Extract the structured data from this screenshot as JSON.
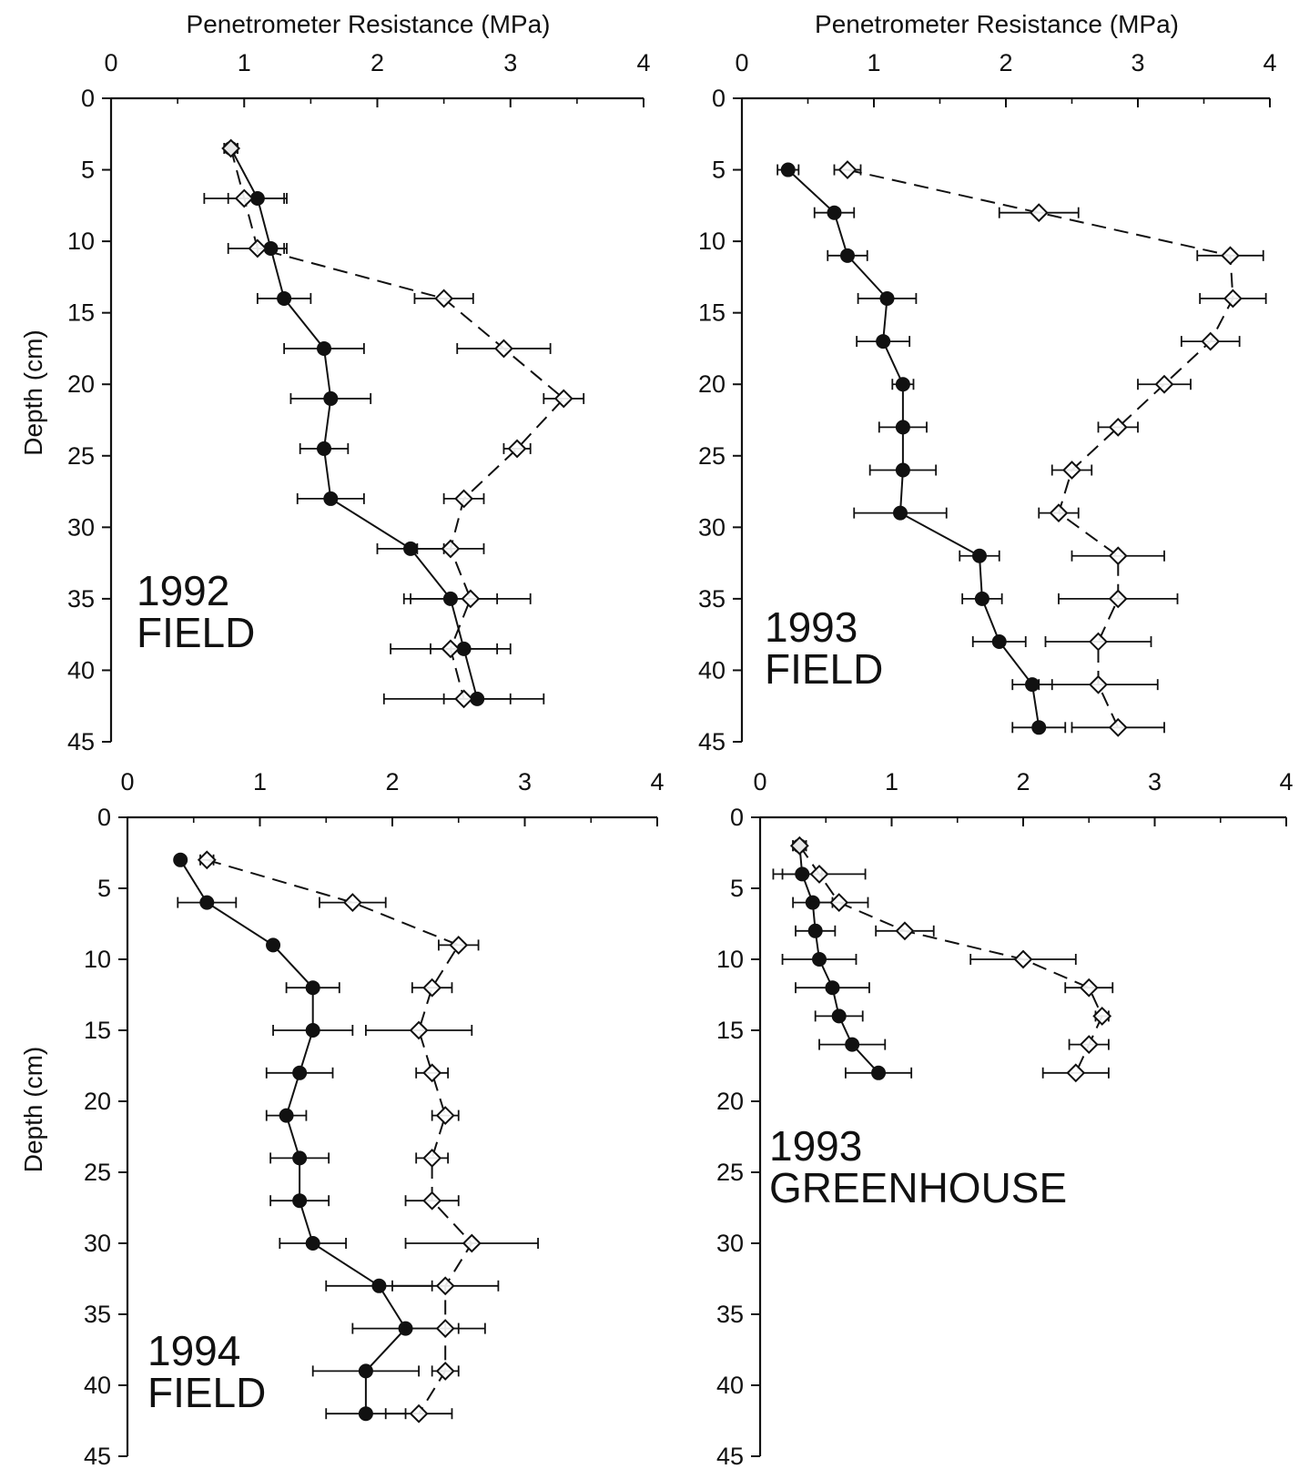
{
  "colors": {
    "ink": "#111111",
    "background": "#ffffff"
  },
  "chart_data": [
    {
      "type": "line",
      "panel_label": [
        "1992",
        "FIELD"
      ],
      "xlabel": "Penetrometer Resistance (MPa)",
      "ylabel": "Depth (cm)",
      "xlim": [
        0,
        4
      ],
      "ylim": [
        0,
        45
      ],
      "y_inverted": true,
      "x_axis_position": "top",
      "xticks": [
        0,
        1,
        2,
        3,
        4
      ],
      "yticks": [
        0,
        5,
        10,
        15,
        20,
        25,
        30,
        35,
        40,
        45
      ],
      "series": [
        {
          "marker": "filled-circle",
          "line": "solid",
          "points": [
            {
              "depth": 3.5,
              "x": 0.9,
              "err": 0.05
            },
            {
              "depth": 7,
              "x": 1.1,
              "err": 0.22
            },
            {
              "depth": 10.5,
              "x": 1.2,
              "err": 0.1
            },
            {
              "depth": 14,
              "x": 1.3,
              "err": 0.2
            },
            {
              "depth": 17.5,
              "x": 1.6,
              "err": 0.3
            },
            {
              "depth": 21,
              "x": 1.65,
              "err": 0.3
            },
            {
              "depth": 24.5,
              "x": 1.6,
              "err": 0.18
            },
            {
              "depth": 28,
              "x": 1.65,
              "err": 0.25
            },
            {
              "depth": 31.5,
              "x": 2.25,
              "err": 0.25
            },
            {
              "depth": 35,
              "x": 2.55,
              "err": 0.35
            },
            {
              "depth": 38.5,
              "x": 2.65,
              "err": 0.25
            },
            {
              "depth": 42,
              "x": 2.75,
              "err": 0.25
            }
          ]
        },
        {
          "marker": "open-diamond",
          "line": "dashed",
          "points": [
            {
              "depth": 3.5,
              "x": 0.9,
              "err": 0.05
            },
            {
              "depth": 7,
              "x": 1.0,
              "err": 0.3
            },
            {
              "depth": 10.5,
              "x": 1.1,
              "err": 0.22
            },
            {
              "depth": 14,
              "x": 2.5,
              "err": 0.22
            },
            {
              "depth": 17.5,
              "x": 2.95,
              "err": 0.35
            },
            {
              "depth": 21,
              "x": 3.4,
              "err": 0.15
            },
            {
              "depth": 24.5,
              "x": 3.05,
              "err": 0.1
            },
            {
              "depth": 28,
              "x": 2.65,
              "err": 0.15
            },
            {
              "depth": 31.5,
              "x": 2.55,
              "err": 0.25
            },
            {
              "depth": 35,
              "x": 2.7,
              "err": 0.45
            },
            {
              "depth": 38.5,
              "x": 2.55,
              "err": 0.45
            },
            {
              "depth": 42,
              "x": 2.65,
              "err": 0.6
            }
          ]
        }
      ]
    },
    {
      "type": "line",
      "panel_label": [
        "1993",
        "FIELD"
      ],
      "xlabel": "Penetrometer Resistance (MPa)",
      "ylabel": "",
      "xlim": [
        0,
        4
      ],
      "ylim": [
        0,
        45
      ],
      "y_inverted": true,
      "x_axis_position": "top",
      "xticks": [
        0,
        1,
        2,
        3,
        4
      ],
      "yticks": [
        0,
        5,
        10,
        15,
        20,
        25,
        30,
        35,
        40,
        45
      ],
      "series": [
        {
          "marker": "filled-circle",
          "line": "solid",
          "points": [
            {
              "depth": 5,
              "x": 0.35,
              "err": 0.08
            },
            {
              "depth": 8,
              "x": 0.7,
              "err": 0.15
            },
            {
              "depth": 11,
              "x": 0.8,
              "err": 0.15
            },
            {
              "depth": 14,
              "x": 1.1,
              "err": 0.22
            },
            {
              "depth": 17,
              "x": 1.07,
              "err": 0.2
            },
            {
              "depth": 20,
              "x": 1.22,
              "err": 0.08
            },
            {
              "depth": 23,
              "x": 1.22,
              "err": 0.18
            },
            {
              "depth": 26,
              "x": 1.22,
              "err": 0.25
            },
            {
              "depth": 29,
              "x": 1.2,
              "err": 0.35
            },
            {
              "depth": 32,
              "x": 1.8,
              "err": 0.15
            },
            {
              "depth": 35,
              "x": 1.82,
              "err": 0.15
            },
            {
              "depth": 38,
              "x": 1.95,
              "err": 0.2
            },
            {
              "depth": 41,
              "x": 2.2,
              "err": 0.15
            },
            {
              "depth": 44,
              "x": 2.25,
              "err": 0.2
            }
          ]
        },
        {
          "marker": "open-diamond",
          "line": "dashed",
          "points": [
            {
              "depth": 5,
              "x": 0.8,
              "err": 0.1
            },
            {
              "depth": 8,
              "x": 2.25,
              "err": 0.3
            },
            {
              "depth": 11,
              "x": 3.7,
              "err": 0.25
            },
            {
              "depth": 14,
              "x": 3.72,
              "err": 0.25
            },
            {
              "depth": 17,
              "x": 3.55,
              "err": 0.22
            },
            {
              "depth": 20,
              "x": 3.2,
              "err": 0.2
            },
            {
              "depth": 23,
              "x": 2.85,
              "err": 0.15
            },
            {
              "depth": 26,
              "x": 2.5,
              "err": 0.15
            },
            {
              "depth": 29,
              "x": 2.4,
              "err": 0.15
            },
            {
              "depth": 32,
              "x": 2.85,
              "err": 0.35
            },
            {
              "depth": 35,
              "x": 2.85,
              "err": 0.45
            },
            {
              "depth": 38,
              "x": 2.7,
              "err": 0.4
            },
            {
              "depth": 41,
              "x": 2.7,
              "err": 0.45
            },
            {
              "depth": 44,
              "x": 2.85,
              "err": 0.35
            }
          ]
        }
      ]
    },
    {
      "type": "line",
      "panel_label": [
        "1994",
        "FIELD"
      ],
      "xlabel": "",
      "ylabel": "Depth (cm)",
      "xlim": [
        0,
        4
      ],
      "ylim": [
        0,
        45
      ],
      "y_inverted": true,
      "x_axis_position": "top",
      "xticks": [
        0,
        1,
        2,
        3,
        4
      ],
      "yticks": [
        0,
        5,
        10,
        15,
        20,
        25,
        30,
        35,
        40,
        45
      ],
      "series": [
        {
          "marker": "filled-circle",
          "line": "solid",
          "points": [
            {
              "depth": 3,
              "x": 0.4,
              "err": 0.0
            },
            {
              "depth": 6,
              "x": 0.6,
              "err": 0.22
            },
            {
              "depth": 9,
              "x": 1.1,
              "err": 0.0
            },
            {
              "depth": 12,
              "x": 1.4,
              "err": 0.2
            },
            {
              "depth": 15,
              "x": 1.4,
              "err": 0.3
            },
            {
              "depth": 18,
              "x": 1.3,
              "err": 0.25
            },
            {
              "depth": 21,
              "x": 1.2,
              "err": 0.15
            },
            {
              "depth": 24,
              "x": 1.3,
              "err": 0.22
            },
            {
              "depth": 27,
              "x": 1.3,
              "err": 0.22
            },
            {
              "depth": 30,
              "x": 1.4,
              "err": 0.25
            },
            {
              "depth": 33,
              "x": 1.9,
              "err": 0.4
            },
            {
              "depth": 36,
              "x": 2.1,
              "err": 0.4
            },
            {
              "depth": 39,
              "x": 1.8,
              "err": 0.4
            },
            {
              "depth": 42,
              "x": 1.8,
              "err": 0.3
            }
          ]
        },
        {
          "marker": "open-diamond",
          "line": "dashed",
          "points": [
            {
              "depth": 3,
              "x": 0.6,
              "err": 0.05
            },
            {
              "depth": 6,
              "x": 1.7,
              "err": 0.25
            },
            {
              "depth": 9,
              "x": 2.5,
              "err": 0.15
            },
            {
              "depth": 12,
              "x": 2.3,
              "err": 0.15
            },
            {
              "depth": 15,
              "x": 2.2,
              "err": 0.4
            },
            {
              "depth": 18,
              "x": 2.3,
              "err": 0.12
            },
            {
              "depth": 21,
              "x": 2.4,
              "err": 0.1
            },
            {
              "depth": 24,
              "x": 2.3,
              "err": 0.12
            },
            {
              "depth": 27,
              "x": 2.3,
              "err": 0.2
            },
            {
              "depth": 30,
              "x": 2.6,
              "err": 0.5
            },
            {
              "depth": 33,
              "x": 2.4,
              "err": 0.4
            },
            {
              "depth": 36,
              "x": 2.4,
              "err": 0.3
            },
            {
              "depth": 39,
              "x": 2.4,
              "err": 0.1
            },
            {
              "depth": 42,
              "x": 2.2,
              "err": 0.25
            }
          ]
        }
      ]
    },
    {
      "type": "line",
      "panel_label": [
        "1993",
        "GREENHOUSE"
      ],
      "xlabel": "",
      "ylabel": "",
      "xlim": [
        0,
        4
      ],
      "ylim": [
        0,
        45
      ],
      "y_inverted": true,
      "x_axis_position": "top",
      "xticks": [
        0,
        1,
        2,
        3,
        4
      ],
      "yticks": [
        0,
        5,
        10,
        15,
        20,
        25,
        30,
        35,
        40,
        45
      ],
      "series": [
        {
          "marker": "filled-circle",
          "line": "solid",
          "points": [
            {
              "depth": 2,
              "x": 0.3,
              "err": 0.05
            },
            {
              "depth": 4,
              "x": 0.32,
              "err": 0.15
            },
            {
              "depth": 6,
              "x": 0.4,
              "err": 0.15
            },
            {
              "depth": 8,
              "x": 0.42,
              "err": 0.15
            },
            {
              "depth": 10,
              "x": 0.45,
              "err": 0.28
            },
            {
              "depth": 12,
              "x": 0.55,
              "err": 0.28
            },
            {
              "depth": 14,
              "x": 0.6,
              "err": 0.18
            },
            {
              "depth": 16,
              "x": 0.7,
              "err": 0.25
            },
            {
              "depth": 18,
              "x": 0.9,
              "err": 0.25
            }
          ]
        },
        {
          "marker": "open-diamond",
          "line": "dashed",
          "points": [
            {
              "depth": 2,
              "x": 0.3,
              "err": 0.05
            },
            {
              "depth": 4,
              "x": 0.45,
              "err": 0.35
            },
            {
              "depth": 6,
              "x": 0.6,
              "err": 0.22
            },
            {
              "depth": 8,
              "x": 1.1,
              "err": 0.22
            },
            {
              "depth": 10,
              "x": 2.0,
              "err": 0.4
            },
            {
              "depth": 12,
              "x": 2.5,
              "err": 0.18
            },
            {
              "depth": 14,
              "x": 2.6,
              "err": 0.05
            },
            {
              "depth": 16,
              "x": 2.5,
              "err": 0.15
            },
            {
              "depth": 18,
              "x": 2.4,
              "err": 0.25
            }
          ]
        }
      ]
    }
  ]
}
